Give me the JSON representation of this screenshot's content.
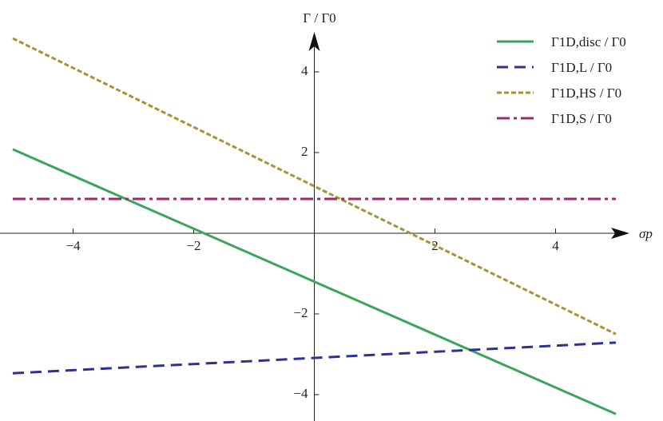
{
  "chart_data": {
    "type": "line",
    "x_label": "σp",
    "y_label": "Γ / Γ0",
    "x": [
      -5,
      5
    ],
    "series": [
      {
        "name": "Γ1D,disc / Γ0",
        "color": "#3ba55c",
        "style": "solid",
        "values": [
          2.08,
          -4.48
        ]
      },
      {
        "name": "Γ1D,L / Γ0",
        "color": "#2e3192",
        "style": "dashed",
        "values": [
          -3.47,
          -2.71
        ]
      },
      {
        "name": "Γ1D,HS / Γ0",
        "color": "#a89234",
        "style": "dotted",
        "values": [
          4.83,
          -2.5
        ]
      },
      {
        "name": "Γ1D,S / Γ0",
        "color": "#a3276c",
        "style": "dashdot",
        "values": [
          0.85,
          0.85
        ]
      }
    ],
    "xlim": [
      -5,
      5
    ],
    "ylim": [
      -4.65,
      4.9
    ],
    "xticks": [
      {
        "value": -4,
        "label": "−4"
      },
      {
        "value": -2,
        "label": "−2"
      },
      2,
      4
    ],
    "yticks": [
      {
        "value": -4,
        "label": "−4"
      },
      {
        "value": -2,
        "label": "−2"
      },
      2,
      4
    ],
    "legend": "top-right"
  }
}
